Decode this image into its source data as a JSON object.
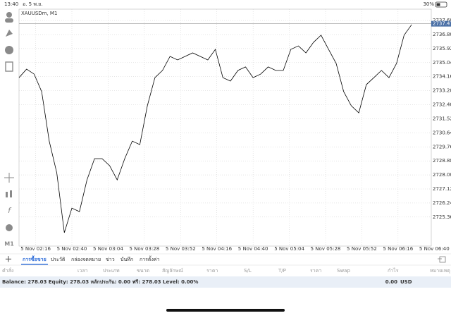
{
  "status_bar": {
    "time": "13:40",
    "date": "อ. 5 พ.ย.",
    "battery": "30%"
  },
  "chart_data": {
    "type": "line",
    "title": "XAUUSDm, M1",
    "current_price": 2737.478,
    "x": [
      "5 Nov 02:05",
      "5 Nov 02:10",
      "5 Nov 02:15",
      "5 Nov 02:20",
      "5 Nov 02:25",
      "5 Nov 02:30",
      "5 Nov 02:35",
      "5 Nov 02:40",
      "5 Nov 02:45",
      "5 Nov 02:50",
      "5 Nov 02:55",
      "5 Nov 03:00",
      "5 Nov 03:05",
      "5 Nov 03:10",
      "5 Nov 03:15",
      "5 Nov 03:20",
      "5 Nov 03:25",
      "5 Nov 03:30",
      "5 Nov 03:35",
      "5 Nov 03:40",
      "5 Nov 03:45",
      "5 Nov 03:50",
      "5 Nov 03:55",
      "5 Nov 04:00",
      "5 Nov 04:05",
      "5 Nov 04:10",
      "5 Nov 04:15",
      "5 Nov 04:20",
      "5 Nov 04:25",
      "5 Nov 04:30",
      "5 Nov 04:35",
      "5 Nov 04:40",
      "5 Nov 04:45",
      "5 Nov 04:50",
      "5 Nov 04:55",
      "5 Nov 05:00",
      "5 Nov 05:05",
      "5 Nov 05:10",
      "5 Nov 05:15",
      "5 Nov 05:20",
      "5 Nov 05:25",
      "5 Nov 05:30",
      "5 Nov 05:35",
      "5 Nov 05:40",
      "5 Nov 05:45",
      "5 Nov 05:50",
      "5 Nov 05:55",
      "5 Nov 06:00",
      "5 Nov 06:05",
      "5 Nov 06:10",
      "5 Nov 06:15",
      "5 Nov 06:20",
      "5 Nov 06:25"
    ],
    "series": [
      {
        "name": "XAUUSDm",
        "color": "#000000",
        "values": [
          2734.1,
          2734.63,
          2734.32,
          2733.22,
          2730.12,
          2728.13,
          2724.38,
          2725.92,
          2725.7,
          2727.69,
          2729.02,
          2729.02,
          2728.58,
          2727.69,
          2729.02,
          2730.12,
          2729.9,
          2732.34,
          2734.1,
          2734.55,
          2735.43,
          2735.21,
          2735.43,
          2735.65,
          2735.43,
          2735.21,
          2735.87,
          2734.1,
          2733.88,
          2734.55,
          2734.77,
          2734.1,
          2734.32,
          2734.77,
          2734.55,
          2734.55,
          2735.87,
          2736.09,
          2735.65,
          2736.31,
          2736.76,
          2735.87,
          2734.99,
          2733.22,
          2732.34,
          2731.89,
          2733.66,
          2734.1,
          2734.55,
          2734.1,
          2734.99,
          2736.76,
          2737.42
        ]
      }
    ],
    "xlim": [
      "5 Nov 02:05",
      "5 Nov 06:38"
    ],
    "xticks": [
      "5 Nov 02:16",
      "5 Nov 02:40",
      "5 Nov 03:04",
      "5 Nov 03:28",
      "5 Nov 03:52",
      "5 Nov 04:16",
      "5 Nov 04:40",
      "5 Nov 05:04",
      "5 Nov 05:28",
      "5 Nov 05:52",
      "5 Nov 06:16",
      "5 Nov 06:40"
    ],
    "ylim": [
      2723.54,
      2738.39
    ],
    "yticks": [
      {
        "value": 2737.68,
        "label": "2737.680"
      },
      {
        "value": 2736.8,
        "label": "2736.800"
      },
      {
        "value": 2735.92,
        "label": "2735.920"
      },
      {
        "value": 2735.04,
        "label": "2735.040"
      },
      {
        "value": 2734.16,
        "label": "2734.160"
      },
      {
        "value": 2733.28,
        "label": "2733.280"
      },
      {
        "value": 2732.4,
        "label": "2732.400"
      },
      {
        "value": 2731.52,
        "label": "2731.520"
      },
      {
        "value": 2730.64,
        "label": "2730.640"
      },
      {
        "value": 2729.76,
        "label": "2729.760"
      },
      {
        "value": 2728.88,
        "label": "2728.880"
      },
      {
        "value": 2728,
        "label": "2728.000"
      },
      {
        "value": 2727.12,
        "label": "2727.120"
      },
      {
        "value": 2726.24,
        "label": "2726.240"
      },
      {
        "value": 2725.36,
        "label": "2725.360"
      }
    ],
    "grid": true
  },
  "toolbar": {
    "timeframe": "M1"
  },
  "tabs": [
    "การซื้อขาย",
    "ประวัติ",
    "กล่องจดหมาย",
    "ข่าว",
    "บันทึก",
    "การตั้งค่า"
  ],
  "table": {
    "headers": [
      "คำสั่ง",
      "เวลา",
      "ประเภท",
      "ขนาด",
      "สัญลักษณ์",
      "ราคา",
      "S/L",
      "T/P",
      "ราคา",
      "Swap",
      "กำไร",
      "หมายเหตุ"
    ]
  },
  "balance": {
    "summary": "Balance: 278.03 Equity: 278.03 หลักประกัน: 0.00 ฟรี: 278.03 Level: 0.00%",
    "profit": "0.00",
    "currency": "USD"
  }
}
